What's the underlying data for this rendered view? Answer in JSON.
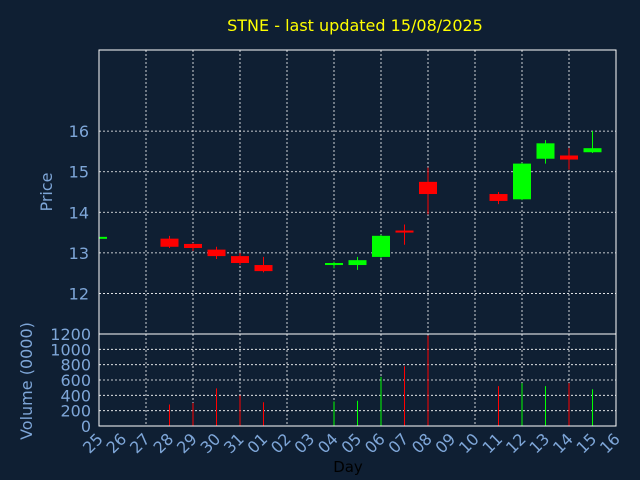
{
  "chart_data": {
    "type": "candlestick",
    "title": "STNE - last updated 15/08/2025",
    "xlabel": "Day",
    "ylabel": "Price",
    "volume_label": "Volume (0000)",
    "price_ylim": [
      11,
      18
    ],
    "price_yticks": [
      12,
      13,
      14,
      15,
      16
    ],
    "volume_ylim": [
      0,
      1200
    ],
    "volume_yticks": [
      0,
      200,
      400,
      600,
      800,
      1000,
      1200
    ],
    "grid": true,
    "colors": {
      "background": "#0f1f33",
      "title": "#ffff00",
      "axis_text": "#7ea6d8",
      "up": "#00ff00",
      "down": "#ff0000",
      "grid": "#ffffff"
    },
    "days": [
      "25",
      "26",
      "27",
      "28",
      "29",
      "30",
      "31",
      "01",
      "02",
      "03",
      "04",
      "05",
      "06",
      "07",
      "08",
      "09",
      "10",
      "11",
      "12",
      "13",
      "14",
      "15",
      "16"
    ],
    "candles": [
      {
        "day": "25",
        "open": 13.37,
        "close": 13.37,
        "high": 13.37,
        "low": 13.37,
        "volume": 0
      },
      {
        "day": "28",
        "open": 13.35,
        "close": 13.15,
        "high": 13.42,
        "low": 13.12,
        "volume": 280
      },
      {
        "day": "29",
        "open": 13.22,
        "close": 13.12,
        "high": 13.25,
        "low": 13.05,
        "volume": 300
      },
      {
        "day": "30",
        "open": 13.08,
        "close": 12.92,
        "high": 13.15,
        "low": 12.85,
        "volume": 490
      },
      {
        "day": "31",
        "open": 12.92,
        "close": 12.75,
        "high": 13.0,
        "low": 12.7,
        "volume": 400
      },
      {
        "day": "01",
        "open": 12.7,
        "close": 12.55,
        "high": 12.9,
        "low": 12.52,
        "volume": 310
      },
      {
        "day": "04",
        "open": 12.7,
        "close": 12.75,
        "high": 12.78,
        "low": 12.62,
        "volume": 320
      },
      {
        "day": "05",
        "open": 12.7,
        "close": 12.82,
        "high": 12.9,
        "low": 12.58,
        "volume": 330
      },
      {
        "day": "06",
        "open": 12.9,
        "close": 13.42,
        "high": 13.45,
        "low": 12.88,
        "volume": 640
      },
      {
        "day": "07",
        "open": 13.55,
        "close": 13.5,
        "high": 13.7,
        "low": 13.2,
        "volume": 780
      },
      {
        "day": "08",
        "open": 14.75,
        "close": 14.45,
        "high": 15.1,
        "low": 13.95,
        "volume": 1180
      },
      {
        "day": "11",
        "open": 14.45,
        "close": 14.28,
        "high": 14.5,
        "low": 14.2,
        "volume": 520
      },
      {
        "day": "12",
        "open": 14.32,
        "close": 15.2,
        "high": 15.22,
        "low": 14.3,
        "volume": 560
      },
      {
        "day": "13",
        "open": 15.32,
        "close": 15.7,
        "high": 15.78,
        "low": 15.2,
        "volume": 520
      },
      {
        "day": "14",
        "open": 15.4,
        "close": 15.3,
        "high": 15.58,
        "low": 15.05,
        "volume": 560
      },
      {
        "day": "15",
        "open": 15.48,
        "close": 15.58,
        "high": 16.0,
        "low": 15.46,
        "volume": 480
      }
    ]
  }
}
